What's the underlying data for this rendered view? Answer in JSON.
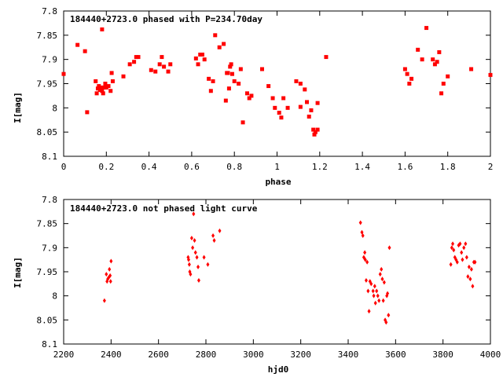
{
  "colors": {
    "series": "#ff0000",
    "axis": "#000000",
    "background": "#ffffff"
  },
  "chart_data": [
    {
      "type": "scatter",
      "title": "184440+2723.0 phased with P=234.70day",
      "xlabel": "phase",
      "ylabel": "I[mag]",
      "xlim": [
        0,
        2
      ],
      "ylim": [
        8.1,
        7.8
      ],
      "y_inverted": true,
      "x_ticks": [
        "0",
        "0.2",
        "0.4",
        "0.6",
        "0.8",
        "1",
        "1.2",
        "1.4",
        "1.6",
        "1.8",
        "2"
      ],
      "y_ticks": [
        "7.8",
        "7.85",
        "7.9",
        "7.95",
        "8",
        "8.05",
        "8.1"
      ],
      "marker": "square",
      "points": [
        [
          0.0,
          7.93
        ],
        [
          0.065,
          7.87
        ],
        [
          0.1,
          7.883
        ],
        [
          0.11,
          8.009
        ],
        [
          0.15,
          7.945
        ],
        [
          0.155,
          7.97
        ],
        [
          0.16,
          7.96
        ],
        [
          0.165,
          7.955
        ],
        [
          0.17,
          7.963
        ],
        [
          0.175,
          7.958
        ],
        [
          0.18,
          7.965
        ],
        [
          0.185,
          7.97
        ],
        [
          0.19,
          7.958
        ],
        [
          0.195,
          7.95
        ],
        [
          0.2,
          7.958
        ],
        [
          0.21,
          7.955
        ],
        [
          0.18,
          7.838
        ],
        [
          0.22,
          7.965
        ],
        [
          0.225,
          7.928
        ],
        [
          0.23,
          7.945
        ],
        [
          0.28,
          7.935
        ],
        [
          0.31,
          7.91
        ],
        [
          0.33,
          7.905
        ],
        [
          0.34,
          7.895
        ],
        [
          0.35,
          7.895
        ],
        [
          0.41,
          7.922
        ],
        [
          0.43,
          7.925
        ],
        [
          0.45,
          7.91
        ],
        [
          0.46,
          7.895
        ],
        [
          0.47,
          7.915
        ],
        [
          0.49,
          7.925
        ],
        [
          0.5,
          7.91
        ],
        [
          0.62,
          7.898
        ],
        [
          0.63,
          7.91
        ],
        [
          0.64,
          7.89
        ],
        [
          0.65,
          7.89
        ],
        [
          0.66,
          7.9
        ],
        [
          0.68,
          7.94
        ],
        [
          0.69,
          7.965
        ],
        [
          0.7,
          7.945
        ],
        [
          0.71,
          7.85
        ],
        [
          0.73,
          7.875
        ],
        [
          0.75,
          7.868
        ],
        [
          0.76,
          7.985
        ],
        [
          0.765,
          7.928
        ],
        [
          0.77,
          7.928
        ],
        [
          0.775,
          7.96
        ],
        [
          0.78,
          7.915
        ],
        [
          0.785,
          7.91
        ],
        [
          0.79,
          7.93
        ],
        [
          0.8,
          7.945
        ],
        [
          0.82,
          7.95
        ],
        [
          0.83,
          7.92
        ],
        [
          0.84,
          8.03
        ],
        [
          0.86,
          7.97
        ],
        [
          0.87,
          7.98
        ],
        [
          0.88,
          7.975
        ],
        [
          0.93,
          7.92
        ],
        [
          0.96,
          7.955
        ],
        [
          0.98,
          7.98
        ],
        [
          0.99,
          8.0
        ],
        [
          1.01,
          8.01
        ],
        [
          1.02,
          8.02
        ],
        [
          1.03,
          7.98
        ],
        [
          1.05,
          8.0
        ],
        [
          1.09,
          7.945
        ],
        [
          1.11,
          7.95
        ],
        [
          1.11,
          7.998
        ],
        [
          1.13,
          7.962
        ],
        [
          1.14,
          7.988
        ],
        [
          1.15,
          8.018
        ],
        [
          1.16,
          8.005
        ],
        [
          1.17,
          8.045
        ],
        [
          1.175,
          8.055
        ],
        [
          1.18,
          8.05
        ],
        [
          1.19,
          7.99
        ],
        [
          1.19,
          8.045
        ],
        [
          1.23,
          7.895
        ],
        [
          1.6,
          7.92
        ],
        [
          1.61,
          7.93
        ],
        [
          1.62,
          7.95
        ],
        [
          1.63,
          7.94
        ],
        [
          1.66,
          7.88
        ],
        [
          1.68,
          7.9
        ],
        [
          1.7,
          7.835
        ],
        [
          1.73,
          7.9
        ],
        [
          1.74,
          7.91
        ],
        [
          1.75,
          7.905
        ],
        [
          1.76,
          7.885
        ],
        [
          1.77,
          7.97
        ],
        [
          1.78,
          7.95
        ],
        [
          1.8,
          7.935
        ],
        [
          1.91,
          7.92
        ],
        [
          2.0,
          7.932
        ]
      ]
    },
    {
      "type": "scatter",
      "title": "184440+2723.0 not phased light curve",
      "xlabel": "hjd0",
      "ylabel": "I[mag]",
      "xlim": [
        2200,
        4000
      ],
      "ylim": [
        8.1,
        7.8
      ],
      "y_inverted": true,
      "x_ticks": [
        "2200",
        "2400",
        "2600",
        "2800",
        "3000",
        "3200",
        "3400",
        "3600",
        "3800",
        "4000"
      ],
      "y_ticks": [
        "7.8",
        "7.85",
        "7.9",
        "7.95",
        "8",
        "8.05",
        "8.1"
      ],
      "marker": "diamond",
      "points": [
        [
          2372,
          8.01
        ],
        [
          2380,
          7.955
        ],
        [
          2383,
          7.97
        ],
        [
          2386,
          7.965
        ],
        [
          2390,
          7.962
        ],
        [
          2393,
          7.945
        ],
        [
          2396,
          7.958
        ],
        [
          2398,
          7.97
        ],
        [
          2400,
          7.928
        ],
        [
          2725,
          7.92
        ],
        [
          2727,
          7.925
        ],
        [
          2730,
          7.935
        ],
        [
          2732,
          7.95
        ],
        [
          2735,
          7.955
        ],
        [
          2740,
          7.88
        ],
        [
          2744,
          7.9
        ],
        [
          2748,
          7.83
        ],
        [
          2752,
          7.885
        ],
        [
          2756,
          7.91
        ],
        [
          2762,
          7.92
        ],
        [
          2767,
          7.94
        ],
        [
          2770,
          7.968
        ],
        [
          2792,
          7.92
        ],
        [
          2808,
          7.935
        ],
        [
          2830,
          7.875
        ],
        [
          2835,
          7.885
        ],
        [
          2858,
          7.865
        ],
        [
          3452,
          7.848
        ],
        [
          3458,
          7.868
        ],
        [
          3462,
          7.875
        ],
        [
          3466,
          7.92
        ],
        [
          3470,
          7.91
        ],
        [
          3472,
          7.925
        ],
        [
          3476,
          7.968
        ],
        [
          3480,
          7.93
        ],
        [
          3484,
          7.99
        ],
        [
          3488,
          8.032
        ],
        [
          3492,
          7.97
        ],
        [
          3497,
          7.975
        ],
        [
          3505,
          7.99
        ],
        [
          3508,
          8.0
        ],
        [
          3512,
          7.98
        ],
        [
          3515,
          8.015
        ],
        [
          3520,
          7.99
        ],
        [
          3525,
          8.0
        ],
        [
          3530,
          8.01
        ],
        [
          3535,
          7.955
        ],
        [
          3540,
          7.945
        ],
        [
          3544,
          7.965
        ],
        [
          3548,
          8.01
        ],
        [
          3552,
          7.972
        ],
        [
          3556,
          8.05
        ],
        [
          3560,
          8.055
        ],
        [
          3563,
          8.0
        ],
        [
          3566,
          7.995
        ],
        [
          3570,
          8.04
        ],
        [
          3574,
          7.9
        ],
        [
          3833,
          7.935
        ],
        [
          3837,
          7.9
        ],
        [
          3841,
          7.892
        ],
        [
          3845,
          7.905
        ],
        [
          3850,
          7.92
        ],
        [
          3855,
          7.925
        ],
        [
          3860,
          7.93
        ],
        [
          3866,
          7.895
        ],
        [
          3872,
          7.892
        ],
        [
          3878,
          7.91
        ],
        [
          3882,
          7.925
        ],
        [
          3888,
          7.9
        ],
        [
          3895,
          7.892
        ],
        [
          3900,
          7.92
        ],
        [
          3905,
          7.96
        ],
        [
          3910,
          7.94
        ],
        [
          3915,
          7.965
        ],
        [
          3920,
          7.945
        ],
        [
          3925,
          7.98
        ],
        [
          3930,
          7.93
        ],
        [
          3935,
          7.93
        ]
      ]
    }
  ]
}
